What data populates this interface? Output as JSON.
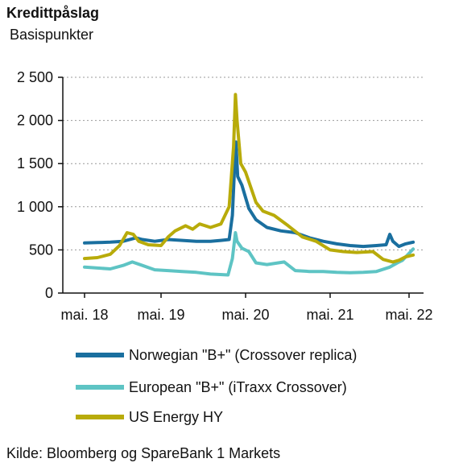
{
  "title": "Kredittpåslag",
  "subtitle": "Basispunkter",
  "source": "Kilde: Bloomberg og SpareBank 1 Markets",
  "chart_data": {
    "type": "line",
    "title": "Kredittpåslag",
    "ylabel": "Basispunkter",
    "ylim": [
      0,
      2500
    ],
    "yticks": [
      0,
      500,
      1000,
      1500,
      2000,
      2500
    ],
    "ytick_labels": [
      "0",
      "500",
      "1 000",
      "1 500",
      "2 000",
      "2 500"
    ],
    "xlim": [
      "2018-05",
      "2022-05"
    ],
    "xtick_labels": [
      "mai. 18",
      "mai. 19",
      "mai. 20",
      "mai. 21",
      "mai. 22"
    ],
    "grid": "horizontal dashed",
    "legend_position": "bottom",
    "series": [
      {
        "name": "Norwegian \"B+\" (Crossover replica)",
        "color": "#1a6f9f",
        "points": [
          [
            "2018-05-01",
            580
          ],
          [
            "2018-07-01",
            585
          ],
          [
            "2018-09-01",
            590
          ],
          [
            "2018-11-01",
            600
          ],
          [
            "2019-01-01",
            640
          ],
          [
            "2019-02-01",
            620
          ],
          [
            "2019-04-01",
            600
          ],
          [
            "2019-06-01",
            620
          ],
          [
            "2019-08-01",
            610
          ],
          [
            "2019-10-01",
            600
          ],
          [
            "2019-12-01",
            600
          ],
          [
            "2020-01-15",
            610
          ],
          [
            "2020-02-20",
            620
          ],
          [
            "2020-03-05",
            900
          ],
          [
            "2020-03-15",
            1500
          ],
          [
            "2020-03-20",
            1750
          ],
          [
            "2020-03-28",
            1350
          ],
          [
            "2020-04-15",
            1250
          ],
          [
            "2020-05-15",
            980
          ],
          [
            "2020-06-15",
            850
          ],
          [
            "2020-08-01",
            760
          ],
          [
            "2020-10-01",
            720
          ],
          [
            "2020-12-01",
            700
          ],
          [
            "2021-02-01",
            640
          ],
          [
            "2021-04-01",
            600
          ],
          [
            "2021-06-01",
            570
          ],
          [
            "2021-08-01",
            550
          ],
          [
            "2021-10-01",
            540
          ],
          [
            "2021-12-01",
            550
          ],
          [
            "2022-01-15",
            560
          ],
          [
            "2022-02-01",
            680
          ],
          [
            "2022-02-15",
            600
          ],
          [
            "2022-03-15",
            540
          ],
          [
            "2022-04-15",
            570
          ],
          [
            "2022-05-20",
            590
          ]
        ]
      },
      {
        "name": "European \"B+\" (iTraxx Crossover)",
        "color": "#5ec4c4",
        "points": [
          [
            "2018-05-01",
            300
          ],
          [
            "2018-07-01",
            290
          ],
          [
            "2018-09-01",
            280
          ],
          [
            "2018-11-01",
            320
          ],
          [
            "2018-12-15",
            360
          ],
          [
            "2019-02-01",
            320
          ],
          [
            "2019-04-01",
            270
          ],
          [
            "2019-06-01",
            260
          ],
          [
            "2019-08-01",
            250
          ],
          [
            "2019-10-01",
            240
          ],
          [
            "2019-12-01",
            220
          ],
          [
            "2020-02-15",
            210
          ],
          [
            "2020-03-05",
            400
          ],
          [
            "2020-03-18",
            700
          ],
          [
            "2020-03-25",
            600
          ],
          [
            "2020-04-15",
            520
          ],
          [
            "2020-05-15",
            480
          ],
          [
            "2020-06-15",
            350
          ],
          [
            "2020-08-01",
            330
          ],
          [
            "2020-10-15",
            360
          ],
          [
            "2020-12-01",
            260
          ],
          [
            "2021-02-01",
            250
          ],
          [
            "2021-04-01",
            250
          ],
          [
            "2021-06-01",
            240
          ],
          [
            "2021-08-01",
            235
          ],
          [
            "2021-10-01",
            240
          ],
          [
            "2021-12-01",
            250
          ],
          [
            "2022-02-01",
            300
          ],
          [
            "2022-03-08",
            350
          ],
          [
            "2022-04-01",
            380
          ],
          [
            "2022-05-20",
            510
          ]
        ]
      },
      {
        "name": "US Energy HY",
        "color": "#b8ab0a",
        "points": [
          [
            "2018-05-01",
            400
          ],
          [
            "2018-07-01",
            410
          ],
          [
            "2018-09-01",
            450
          ],
          [
            "2018-10-15",
            550
          ],
          [
            "2018-11-20",
            700
          ],
          [
            "2018-12-20",
            680
          ],
          [
            "2019-01-15",
            600
          ],
          [
            "2019-03-01",
            560
          ],
          [
            "2019-05-01",
            550
          ],
          [
            "2019-06-01",
            650
          ],
          [
            "2019-07-01",
            720
          ],
          [
            "2019-08-15",
            780
          ],
          [
            "2019-09-15",
            740
          ],
          [
            "2019-10-15",
            800
          ],
          [
            "2019-12-01",
            760
          ],
          [
            "2020-01-15",
            800
          ],
          [
            "2020-02-20",
            1000
          ],
          [
            "2020-03-10",
            1700
          ],
          [
            "2020-03-18",
            2300
          ],
          [
            "2020-03-25",
            2000
          ],
          [
            "2020-04-10",
            1500
          ],
          [
            "2020-05-01",
            1400
          ],
          [
            "2020-06-15",
            1050
          ],
          [
            "2020-07-15",
            950
          ],
          [
            "2020-09-01",
            900
          ],
          [
            "2020-11-01",
            780
          ],
          [
            "2021-01-01",
            650
          ],
          [
            "2021-03-01",
            600
          ],
          [
            "2021-05-01",
            500
          ],
          [
            "2021-07-01",
            480
          ],
          [
            "2021-09-01",
            470
          ],
          [
            "2021-11-15",
            480
          ],
          [
            "2022-01-01",
            390
          ],
          [
            "2022-02-15",
            360
          ],
          [
            "2022-03-15",
            380
          ],
          [
            "2022-04-15",
            420
          ],
          [
            "2022-05-20",
            440
          ]
        ]
      }
    ]
  }
}
